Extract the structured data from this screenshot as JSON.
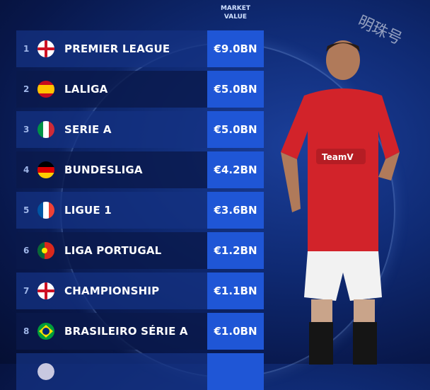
{
  "header": {
    "market_value_line1": "MARKET",
    "market_value_line2": "VALUE"
  },
  "watermark": "明珠号",
  "rows": [
    {
      "rank": "1",
      "flag": "england-flag-icon",
      "league": "PREMIER LEAGUE",
      "value": "€9.0BN"
    },
    {
      "rank": "2",
      "flag": "spain-flag-icon",
      "league": "LALIGA",
      "value": "€5.0BN"
    },
    {
      "rank": "3",
      "flag": "italy-flag-icon",
      "league": "SERIE A",
      "value": "€5.0BN"
    },
    {
      "rank": "4",
      "flag": "germany-flag-icon",
      "league": "BUNDESLIGA",
      "value": "€4.2BN"
    },
    {
      "rank": "5",
      "flag": "france-flag-icon",
      "league": "LIGUE 1",
      "value": "€3.6BN"
    },
    {
      "rank": "6",
      "flag": "portugal-flag-icon",
      "league": "LIGA PORTUGAL",
      "value": "€1.2BN"
    },
    {
      "rank": "7",
      "flag": "england-flag-icon",
      "league": "CHAMPIONSHIP",
      "value": "€1.1BN"
    },
    {
      "rank": "8",
      "flag": "brazil-flag-icon",
      "league": "BRASILEIRO SÉRIE A",
      "value": "€1.0BN"
    },
    {
      "rank": "",
      "flag": "",
      "league": "",
      "value": ""
    }
  ],
  "colors": {
    "value_box": "#1f56d6",
    "row": "#14328a",
    "background": "#0f2a73"
  }
}
